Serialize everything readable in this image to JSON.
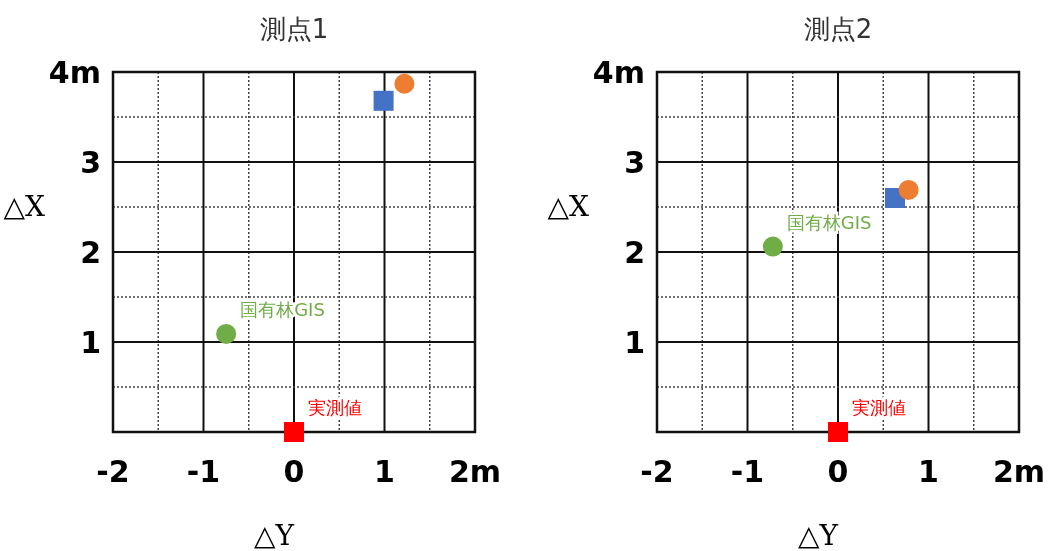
{
  "chart_data": [
    {
      "type": "scatter",
      "title": "測点1",
      "xlabel": "△Y",
      "ylabel": "△X",
      "xlim": [
        -2,
        2
      ],
      "ylim": [
        0,
        4
      ],
      "xticks": [
        -2,
        -1,
        0,
        1,
        {
          "value": 2,
          "label": "2m"
        }
      ],
      "yticks": [
        1,
        2,
        3,
        {
          "value": 4,
          "label": "4m"
        }
      ],
      "grid": true,
      "series": [
        {
          "name": "実測値",
          "color": "#ff0000",
          "marker": "square",
          "x": [
            0
          ],
          "values": [
            0
          ]
        },
        {
          "name": "国有林GIS",
          "color": "#70ad47",
          "marker": "circle",
          "x": [
            -0.75
          ],
          "values": [
            1.09
          ]
        },
        {
          "color": "#4472c4",
          "marker": "square",
          "x": [
            0.99
          ],
          "values": [
            3.68
          ]
        },
        {
          "color": "#ed7d31",
          "marker": "circle",
          "x": [
            1.22
          ],
          "values": [
            3.87
          ]
        }
      ]
    },
    {
      "type": "scatter",
      "title": "測点2",
      "xlabel": "△Y",
      "ylabel": "△X",
      "xlim": [
        -2,
        2
      ],
      "ylim": [
        0,
        4
      ],
      "xticks": [
        -2,
        -1,
        0,
        1,
        {
          "value": 2,
          "label": "2m"
        }
      ],
      "yticks": [
        1,
        2,
        3,
        {
          "value": 4,
          "label": "4m"
        }
      ],
      "grid": true,
      "series": [
        {
          "name": "実測値",
          "color": "#ff0000",
          "marker": "square",
          "x": [
            0
          ],
          "values": [
            0
          ]
        },
        {
          "name": "国有林GIS",
          "color": "#70ad47",
          "marker": "circle",
          "x": [
            -0.72
          ],
          "values": [
            2.06
          ]
        },
        {
          "color": "#4472c4",
          "marker": "square",
          "x": [
            0.63
          ],
          "values": [
            2.6
          ]
        },
        {
          "color": "#ed7d31",
          "marker": "circle",
          "x": [
            0.78
          ],
          "values": [
            2.69
          ]
        }
      ]
    }
  ]
}
